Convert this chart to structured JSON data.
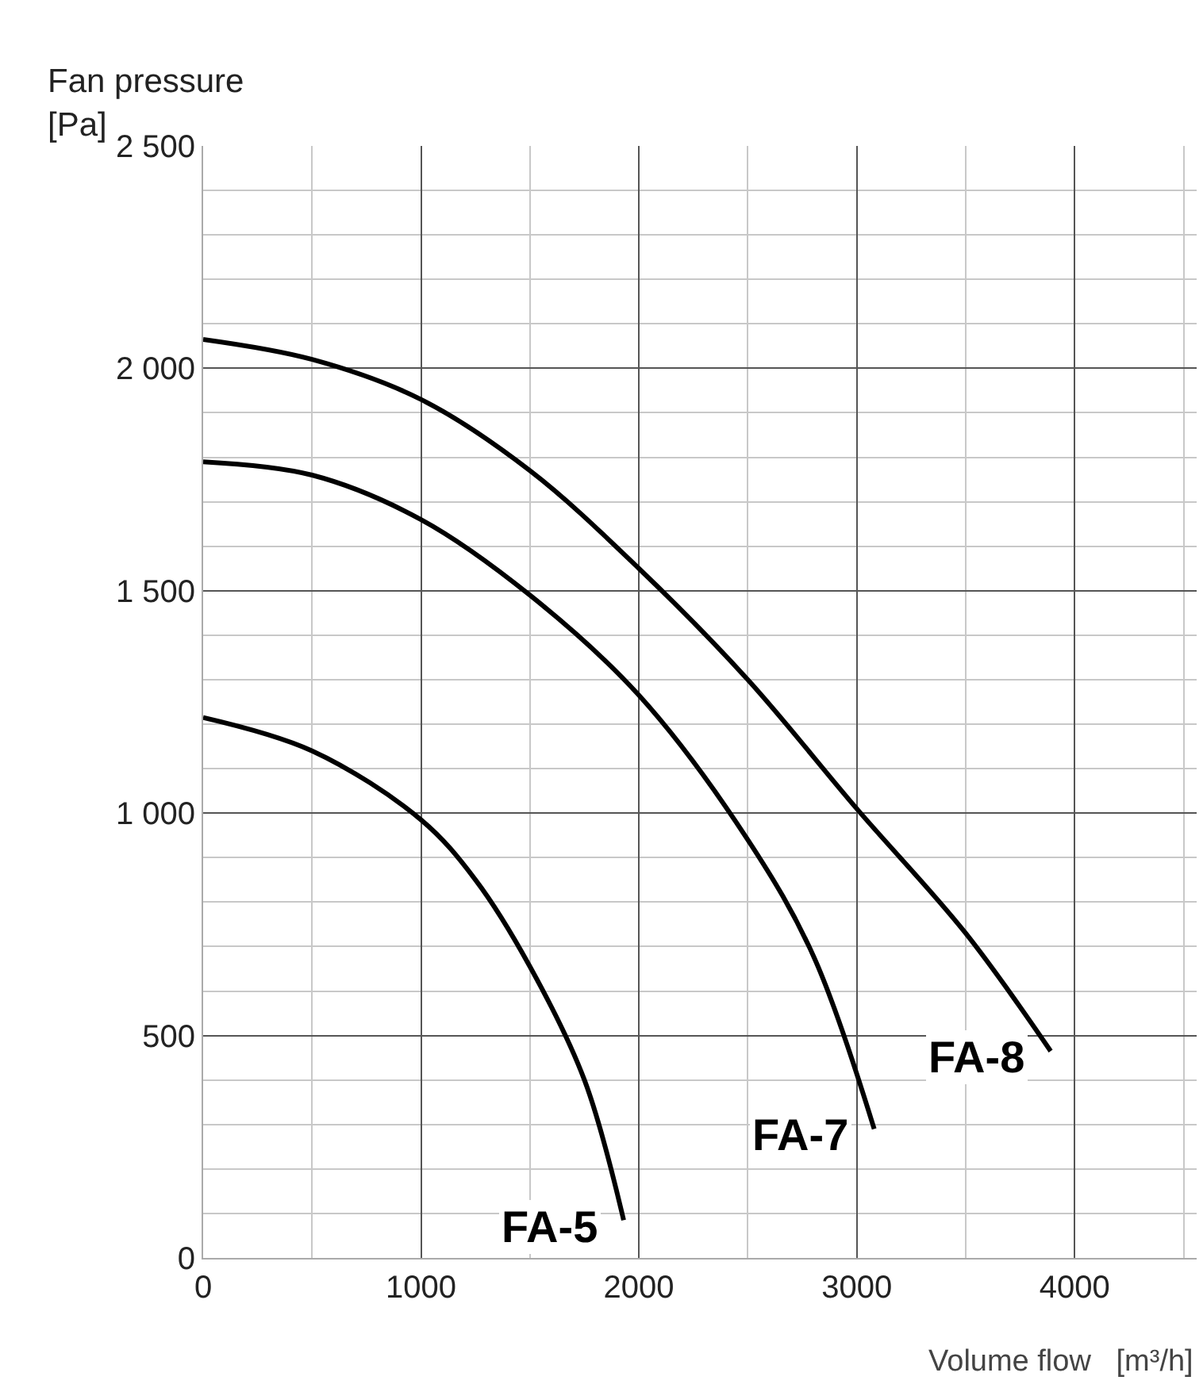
{
  "chart_data": {
    "type": "line",
    "ylabel": "Fan pressure\n[Pa]",
    "xlabel": "Volume flow   [m³/h]",
    "xlim": [
      0,
      4560
    ],
    "ylim": [
      0,
      2500
    ],
    "xticks": [
      0,
      1000,
      2000,
      3000,
      4000,
      {
        "value": 500,
        "label": null
      },
      {
        "value": 1500,
        "label": null
      },
      {
        "value": 2500,
        "label": null
      },
      {
        "value": 3500,
        "label": null
      },
      {
        "value": 4500,
        "label": null
      }
    ],
    "yticks": [
      0,
      500,
      {
        "value": 1000,
        "label": "1 000"
      },
      {
        "value": 1500,
        "label": "1 500"
      },
      {
        "value": 2000,
        "label": "2 000"
      },
      {
        "value": 2500,
        "label": "2 500"
      },
      {
        "value": 100,
        "label": null
      },
      {
        "value": 200,
        "label": null
      },
      {
        "value": 300,
        "label": null
      },
      {
        "value": 400,
        "label": null
      },
      {
        "value": 600,
        "label": null
      },
      {
        "value": 700,
        "label": null
      },
      {
        "value": 800,
        "label": null
      },
      {
        "value": 900,
        "label": null
      },
      {
        "value": 1100,
        "label": null
      },
      {
        "value": 1200,
        "label": null
      },
      {
        "value": 1300,
        "label": null
      },
      {
        "value": 1400,
        "label": null
      },
      {
        "value": 1600,
        "label": null
      },
      {
        "value": 1700,
        "label": null
      },
      {
        "value": 1800,
        "label": null
      },
      {
        "value": 1900,
        "label": null
      },
      {
        "value": 2100,
        "label": null
      },
      {
        "value": 2200,
        "label": null
      },
      {
        "value": 2300,
        "label": null
      },
      {
        "value": 2400,
        "label": null
      }
    ],
    "grid": true,
    "marker": "none",
    "line_style": "solid",
    "series": [
      {
        "name": "FA-8",
        "color": "#000000",
        "x": [
          0,
          500,
          1000,
          1500,
          2000,
          2500,
          3000,
          3500,
          3890
        ],
        "values": [
          2065,
          2020,
          1930,
          1770,
          1550,
          1300,
          1010,
          730,
          465
        ]
      },
      {
        "name": "FA-7",
        "color": "#000000",
        "x": [
          0,
          500,
          1000,
          1500,
          2000,
          2500,
          2800,
          3080
        ],
        "values": [
          1790,
          1760,
          1660,
          1490,
          1265,
          940,
          680,
          290
        ]
      },
      {
        "name": "FA-5",
        "color": "#000000",
        "x": [
          0,
          500,
          1000,
          1250,
          1500,
          1750,
          1930
        ],
        "values": [
          1215,
          1140,
          985,
          850,
          655,
          400,
          85
        ]
      }
    ]
  }
}
